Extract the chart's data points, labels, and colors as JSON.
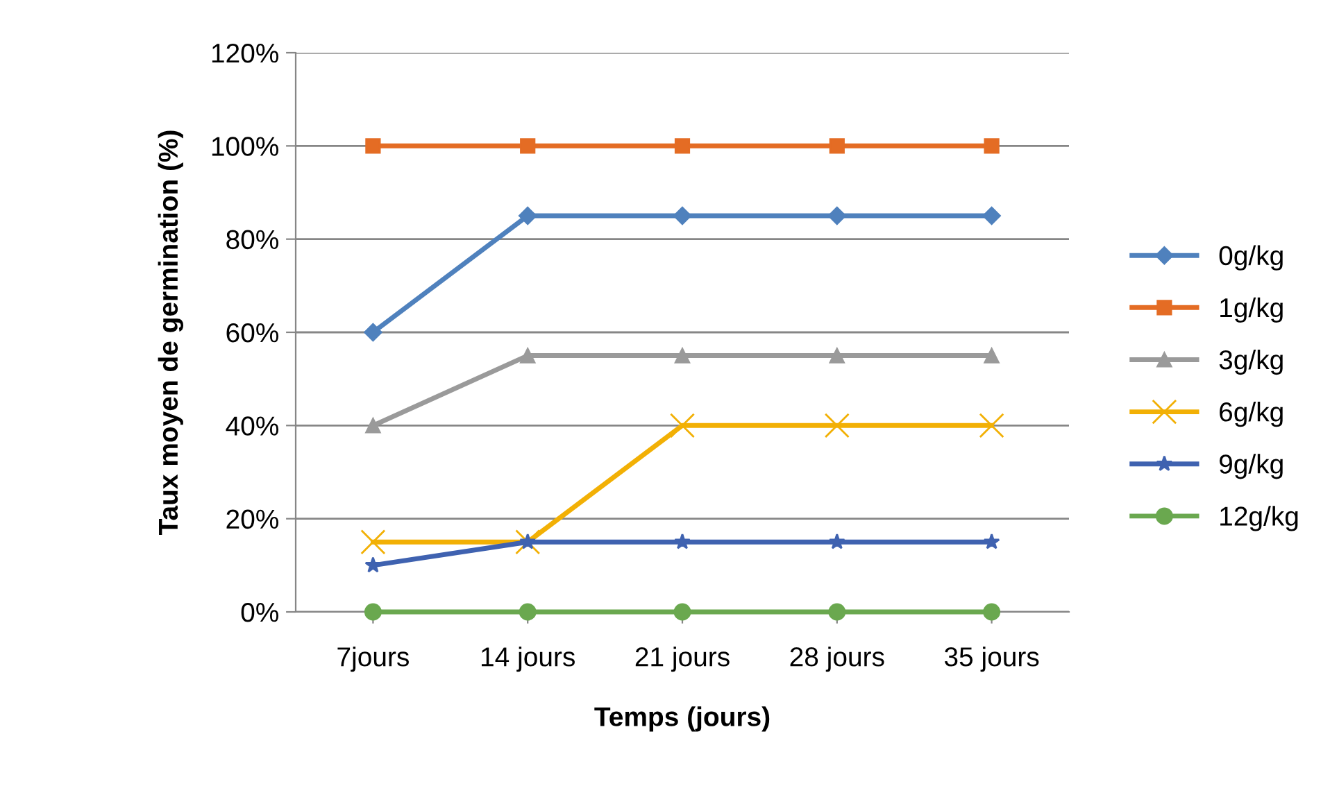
{
  "chart_data": {
    "type": "line",
    "xlabel": "Temps (jours)",
    "ylabel": "Taux moyen de germination (%)",
    "categories": [
      "7jours",
      "14 jours",
      "21 jours",
      "28 jours",
      "35 jours"
    ],
    "series": [
      {
        "name": "0g/kg",
        "color": "#4f81bd",
        "marker": "diamond",
        "values": [
          60,
          85,
          85,
          85,
          85
        ]
      },
      {
        "name": "1g/kg",
        "color": "#e46c24",
        "marker": "square",
        "values": [
          100,
          100,
          100,
          100,
          100
        ]
      },
      {
        "name": "3g/kg",
        "color": "#9a9a9a",
        "marker": "triangle",
        "values": [
          40,
          55,
          55,
          55,
          55
        ]
      },
      {
        "name": "6g/kg",
        "color": "#f2b005",
        "marker": "cross",
        "values": [
          15,
          15,
          40,
          40,
          40
        ]
      },
      {
        "name": "9g/kg",
        "color": "#3f62b0",
        "marker": "star",
        "values": [
          10,
          15,
          15,
          15,
          15
        ]
      },
      {
        "name": "12g/kg",
        "color": "#6aa84f",
        "marker": "circle",
        "values": [
          0,
          0,
          0,
          0,
          0
        ]
      }
    ],
    "ylim": [
      0,
      120
    ],
    "yticks": [
      {
        "value": 0,
        "label": "0%"
      },
      {
        "value": 20,
        "label": "20%"
      },
      {
        "value": 40,
        "label": "40%"
      },
      {
        "value": 60,
        "label": "60%"
      },
      {
        "value": 80,
        "label": "80%"
      },
      {
        "value": 100,
        "label": "100%"
      },
      {
        "value": 120,
        "label": "120%"
      }
    ],
    "grid": "y",
    "legend": "right",
    "line_style": "solid"
  }
}
